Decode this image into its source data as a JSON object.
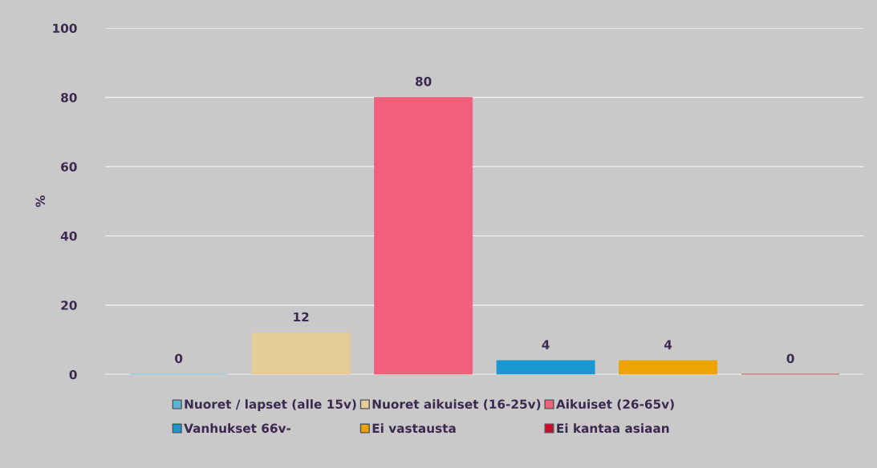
{
  "chart_data": {
    "type": "bar",
    "ylabel": "%",
    "categories": [
      null,
      null,
      null,
      null,
      null,
      null
    ],
    "series": [
      {
        "name": "Nuoret / lapset (alle 15v)",
        "color": "#5ab4d6",
        "values": [
          0,
          null,
          null,
          null,
          null,
          null
        ]
      },
      {
        "name": "Nuoret aikuiset (16-25v)",
        "color": "#e6cc96",
        "values": [
          null,
          12,
          null,
          null,
          null,
          null
        ]
      },
      {
        "name": "Aikuiset (26-65v)",
        "color": "#f0607a",
        "values": [
          null,
          null,
          80,
          null,
          null,
          null
        ]
      },
      {
        "name": "Vanhukset 66v-",
        "color": "#1a98d4",
        "values": [
          null,
          null,
          null,
          4,
          null,
          null
        ]
      },
      {
        "name": "Ei vastausta",
        "color": "#eea400",
        "values": [
          null,
          null,
          null,
          null,
          4,
          null
        ]
      },
      {
        "name": "Ei kantaa asiaan",
        "color": "#c0102a",
        "values": [
          null,
          null,
          null,
          null,
          null,
          0
        ]
      }
    ],
    "ylim": [
      0,
      100
    ],
    "yticks": [
      0,
      20,
      40,
      60,
      80,
      100
    ],
    "grid": "y",
    "legend": "bottom",
    "data_labels": true
  }
}
